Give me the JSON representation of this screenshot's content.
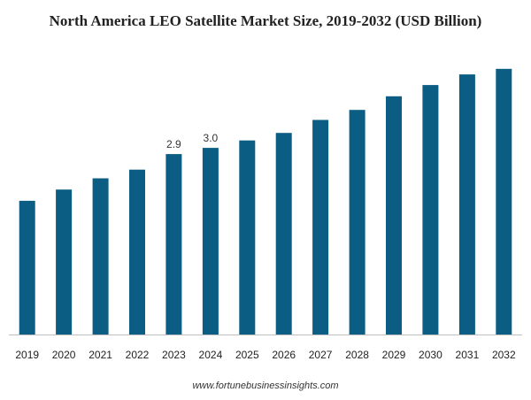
{
  "chart_data": {
    "type": "bar",
    "title": "North America LEO Satellite Market Size, 2019-2032 (USD Billion)",
    "xlabel": "",
    "ylabel": "",
    "categories": [
      "2019",
      "2020",
      "2021",
      "2022",
      "2023",
      "2024",
      "2025",
      "2026",
      "2027",
      "2028",
      "2029",
      "2030",
      "2031",
      "2032"
    ],
    "values": [
      2.15,
      2.33,
      2.51,
      2.65,
      2.9,
      3.0,
      3.12,
      3.24,
      3.45,
      3.61,
      3.83,
      4.01,
      4.18,
      4.27
    ],
    "data_labels": [
      "",
      "",
      "",
      "",
      "2.9",
      "3.0",
      "",
      "",
      "",
      "",
      "",
      "",
      "",
      ""
    ],
    "ylim": [
      0,
      4.5
    ],
    "grid": false,
    "legend": "none",
    "bar_color": "#0b5d84",
    "axis_color": "#bfbfbf"
  },
  "watermark": "www.fortunebusinessinsights.com"
}
